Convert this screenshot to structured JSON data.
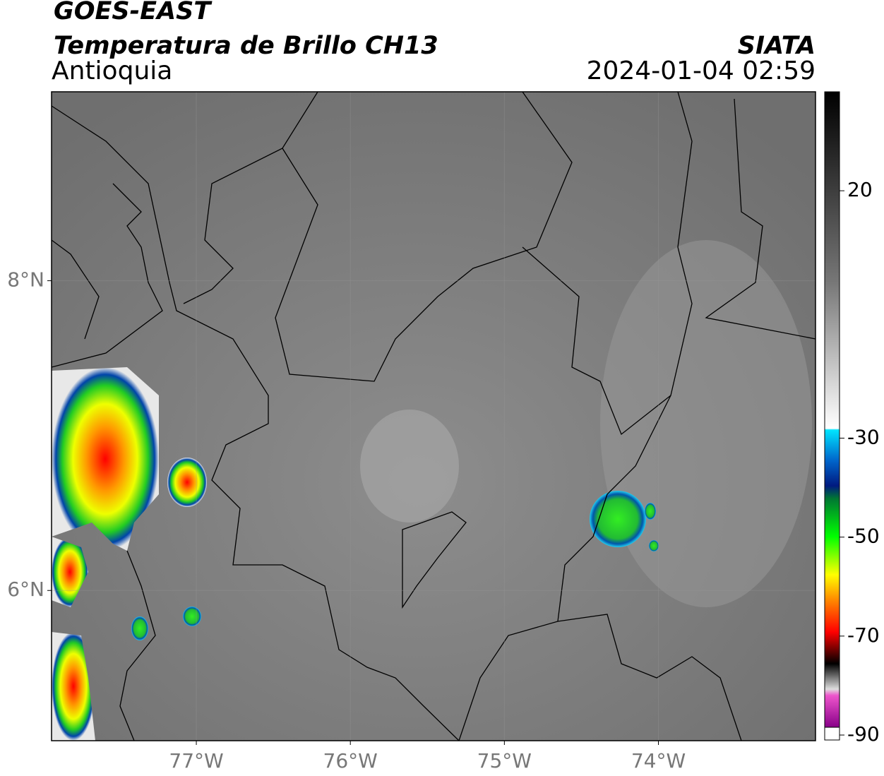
{
  "header": {
    "title": "GOES-EAST",
    "subtitle": "Temperatura de Brillo CH13",
    "region": "Antioquia",
    "source": "SIATA",
    "datetime": "2024-01-04 02:59"
  },
  "map": {
    "xlim": [
      -77.94,
      -72.98
    ],
    "ylim": [
      5.03,
      9.22
    ],
    "xticks": [
      {
        "value": -77,
        "label": "77°W"
      },
      {
        "value": -76,
        "label": "76°W"
      },
      {
        "value": -75,
        "label": "75°W"
      },
      {
        "value": -74,
        "label": "74°W"
      }
    ],
    "yticks": [
      {
        "value": 8,
        "label": "8°N"
      },
      {
        "value": 6,
        "label": "6°N"
      }
    ],
    "grid": true
  },
  "colorbar": {
    "lim": [
      -91,
      40
    ],
    "ticks": [
      20,
      -30,
      -50,
      -70,
      -90
    ]
  }
}
